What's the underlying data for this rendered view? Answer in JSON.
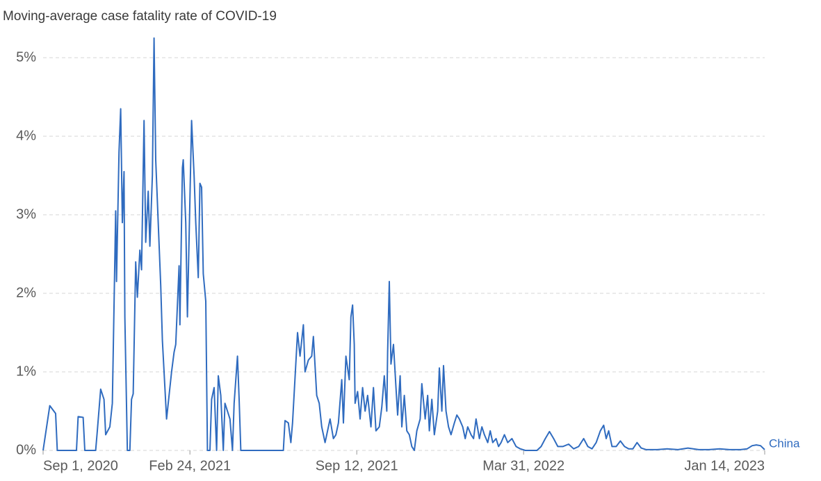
{
  "chart_data": {
    "type": "line",
    "title": "Moving-average case fatality rate of COVID-19",
    "x": [
      "2020-09-01",
      "2020-09-09",
      "2020-09-16",
      "2020-09-18",
      "2020-10-11",
      "2020-10-13",
      "2020-10-19",
      "2020-10-21",
      "2020-11-03",
      "2020-11-05",
      "2020-11-09",
      "2020-11-13",
      "2020-11-15",
      "2020-11-20",
      "2020-11-23",
      "2020-11-27",
      "2020-11-28",
      "2020-12-01",
      "2020-12-03",
      "2020-12-05",
      "2020-12-07",
      "2020-12-08",
      "2020-12-11",
      "2020-12-14",
      "2020-12-16",
      "2020-12-18",
      "2020-12-21",
      "2020-12-23",
      "2020-12-26",
      "2020-12-28",
      "2020-12-31",
      "2021-01-02",
      "2021-01-05",
      "2021-01-07",
      "2021-01-10",
      "2021-01-12",
      "2021-01-14",
      "2021-01-17",
      "2021-01-20",
      "2021-01-22",
      "2021-01-25",
      "2021-01-27",
      "2021-01-30",
      "2021-02-02",
      "2021-02-05",
      "2021-02-07",
      "2021-02-11",
      "2021-02-12",
      "2021-02-15",
      "2021-02-16",
      "2021-02-19",
      "2021-02-21",
      "2021-02-24",
      "2021-02-26",
      "2021-03-01",
      "2021-03-03",
      "2021-03-06",
      "2021-03-08",
      "2021-03-10",
      "2021-03-12",
      "2021-03-15",
      "2021-03-17",
      "2021-03-20",
      "2021-03-22",
      "2021-03-25",
      "2021-03-28",
      "2021-03-30",
      "2021-04-02",
      "2021-04-05",
      "2021-04-07",
      "2021-04-10",
      "2021-04-13",
      "2021-04-16",
      "2021-04-18",
      "2021-04-22",
      "2021-04-24",
      "2021-04-26",
      "2021-06-16",
      "2021-06-18",
      "2021-06-22",
      "2021-06-25",
      "2021-06-27",
      "2021-07-03",
      "2021-07-06",
      "2021-07-10",
      "2021-07-12",
      "2021-07-16",
      "2021-07-20",
      "2021-07-22",
      "2021-07-26",
      "2021-07-29",
      "2021-08-01",
      "2021-08-05",
      "2021-08-08",
      "2021-08-11",
      "2021-08-15",
      "2021-08-18",
      "2021-08-21",
      "2021-08-25",
      "2021-08-27",
      "2021-08-30",
      "2021-09-03",
      "2021-09-05",
      "2021-09-07",
      "2021-09-09",
      "2021-09-10",
      "2021-09-13",
      "2021-09-16",
      "2021-09-19",
      "2021-09-22",
      "2021-09-25",
      "2021-09-29",
      "2021-10-02",
      "2021-10-05",
      "2021-10-09",
      "2021-10-12",
      "2021-10-15",
      "2021-10-18",
      "2021-10-19",
      "2021-10-21",
      "2021-10-23",
      "2021-10-26",
      "2021-10-29",
      "2021-10-31",
      "2021-11-03",
      "2021-11-05",
      "2021-11-08",
      "2021-11-11",
      "2021-11-14",
      "2021-11-17",
      "2021-11-20",
      "2021-11-23",
      "2021-11-27",
      "2021-11-29",
      "2021-12-03",
      "2021-12-06",
      "2021-12-08",
      "2021-12-11",
      "2021-12-14",
      "2021-12-18",
      "2021-12-20",
      "2021-12-23",
      "2021-12-25",
      "2021-12-28",
      "2021-12-31",
      "2022-01-03",
      "2022-01-07",
      "2022-01-10",
      "2022-01-13",
      "2022-01-17",
      "2022-01-20",
      "2022-01-23",
      "2022-01-27",
      "2022-01-30",
      "2022-02-02",
      "2022-02-06",
      "2022-02-09",
      "2022-02-12",
      "2022-02-16",
      "2022-02-19",
      "2022-02-22",
      "2022-02-26",
      "2022-03-01",
      "2022-03-04",
      "2022-03-08",
      "2022-03-12",
      "2022-03-17",
      "2022-03-22",
      "2022-03-27",
      "2022-04-02",
      "2022-04-10",
      "2022-04-16",
      "2022-04-21",
      "2022-04-26",
      "2022-05-01",
      "2022-05-06",
      "2022-05-11",
      "2022-05-17",
      "2022-05-24",
      "2022-05-30",
      "2022-06-05",
      "2022-06-11",
      "2022-06-16",
      "2022-06-21",
      "2022-06-26",
      "2022-07-01",
      "2022-07-05",
      "2022-07-08",
      "2022-07-11",
      "2022-07-15",
      "2022-07-20",
      "2022-07-25",
      "2022-07-30",
      "2022-08-04",
      "2022-08-09",
      "2022-08-14",
      "2022-08-19",
      "2022-08-25",
      "2022-09-07",
      "2022-09-19",
      "2022-10-02",
      "2022-10-14",
      "2022-10-27",
      "2022-11-08",
      "2022-11-21",
      "2022-12-03",
      "2022-12-16",
      "2022-12-24",
      "2022-12-30",
      "2023-01-04",
      "2023-01-09",
      "2023-01-14"
    ],
    "series": [
      {
        "name": "China",
        "color": "#2f6bbf",
        "values": [
          0,
          0.57,
          0.47,
          0,
          0,
          0.43,
          0.42,
          0,
          0,
          0.25,
          0.78,
          0.65,
          0.2,
          0.3,
          0.6,
          3.05,
          2.15,
          3.8,
          4.35,
          2.9,
          3.55,
          1.7,
          0,
          0,
          0.65,
          0.72,
          2.4,
          1.95,
          2.55,
          2.3,
          4.2,
          2.65,
          3.3,
          2.6,
          3.5,
          5.25,
          3.7,
          2.9,
          2.1,
          1.4,
          0.8,
          0.4,
          0.7,
          1.0,
          1.25,
          1.35,
          2.35,
          1.6,
          3.6,
          3.7,
          2.9,
          1.7,
          3.2,
          4.2,
          3.5,
          2.9,
          2.2,
          3.4,
          3.35,
          2.25,
          1.9,
          0,
          0,
          0.65,
          0.8,
          0,
          0.95,
          0.7,
          0,
          0.6,
          0.5,
          0.4,
          0,
          0.6,
          1.2,
          0.65,
          0,
          0,
          0.38,
          0.35,
          0.1,
          0.35,
          1.5,
          1.2,
          1.6,
          1.0,
          1.15,
          1.2,
          1.45,
          0.7,
          0.6,
          0.3,
          0.1,
          0.25,
          0.4,
          0.15,
          0.2,
          0.35,
          0.9,
          0.35,
          1.2,
          0.9,
          1.7,
          1.85,
          1.35,
          0.6,
          0.75,
          0.4,
          0.8,
          0.5,
          0.7,
          0.3,
          0.8,
          0.25,
          0.3,
          0.55,
          0.95,
          0.5,
          1.25,
          2.15,
          1.1,
          1.35,
          0.8,
          0.45,
          0.95,
          0.3,
          0.7,
          0.25,
          0.2,
          0.05,
          0,
          0.25,
          0.4,
          0.85,
          0.4,
          0.7,
          0.25,
          0.65,
          0.2,
          0.5,
          1.05,
          0.5,
          1.08,
          0.5,
          0.3,
          0.2,
          0.35,
          0.45,
          0.4,
          0.3,
          0.15,
          0.3,
          0.2,
          0.15,
          0.4,
          0.15,
          0.3,
          0.2,
          0.1,
          0.25,
          0.1,
          0.15,
          0.05,
          0.1,
          0.2,
          0.1,
          0.15,
          0.05,
          0.02,
          0,
          0,
          0,
          0.05,
          0.15,
          0.24,
          0.15,
          0.05,
          0.05,
          0.08,
          0.02,
          0.05,
          0.15,
          0.05,
          0.02,
          0.1,
          0.25,
          0.32,
          0.15,
          0.25,
          0.05,
          0.05,
          0.12,
          0.05,
          0.02,
          0.02,
          0.1,
          0.03,
          0.01,
          0.01,
          0.02,
          0.01,
          0.03,
          0.01,
          0.01,
          0.02,
          0.01,
          0.01,
          0.02,
          0.06,
          0.07,
          0.06,
          0.01
        ]
      }
    ],
    "xlim": [
      "2020-09-01",
      "2023-01-14"
    ],
    "xticks": [
      {
        "value": "2020-09-01",
        "label": "Sep 1, 2020"
      },
      {
        "value": "2021-02-24",
        "label": "Feb 24, 2021"
      },
      {
        "value": "2021-09-12",
        "label": "Sep 12, 2021"
      },
      {
        "value": "2022-03-31",
        "label": "Mar 31, 2022"
      },
      {
        "value": "2023-01-14",
        "label": "Jan 14, 2023"
      }
    ],
    "ylim": [
      0,
      5.3
    ],
    "yticks": [
      {
        "value": 0,
        "label": "0%"
      },
      {
        "value": 1,
        "label": "1%"
      },
      {
        "value": 2,
        "label": "2%"
      },
      {
        "value": 3,
        "label": "3%"
      },
      {
        "value": 4,
        "label": "4%"
      },
      {
        "value": 5,
        "label": "5%"
      }
    ],
    "grid": true
  }
}
